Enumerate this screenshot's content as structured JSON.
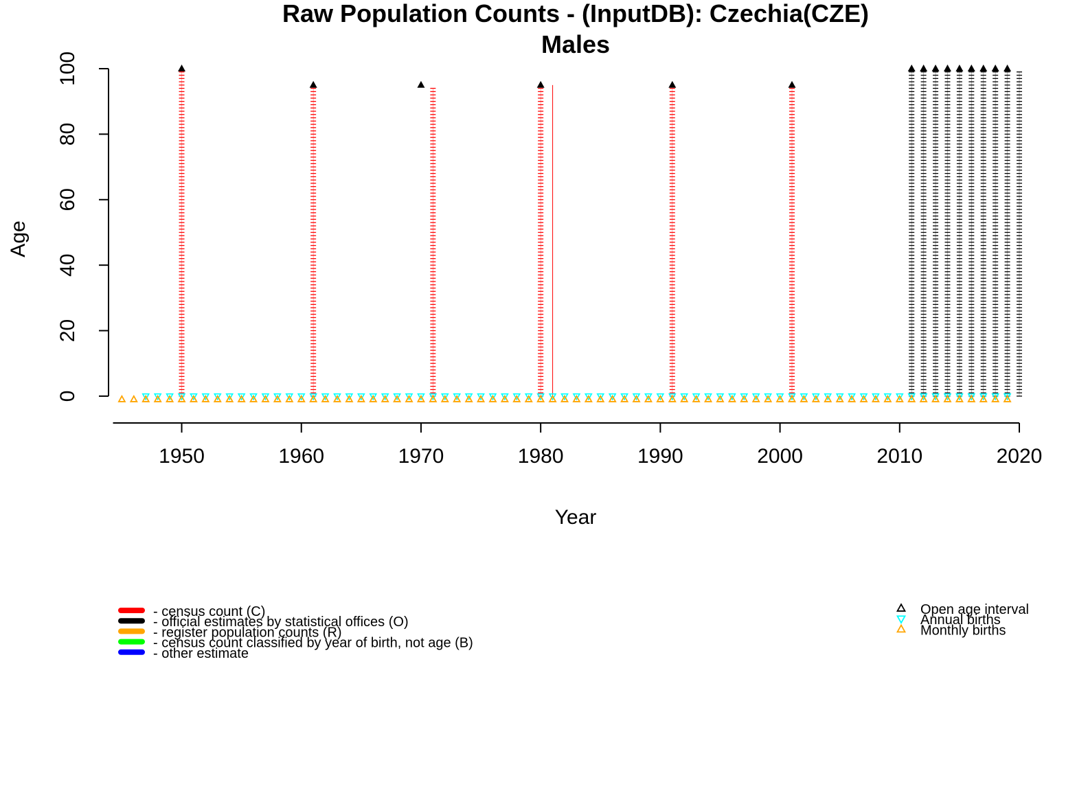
{
  "chart_data": {
    "type": "scatter",
    "title": "Raw Population Counts - (InputDB): Czechia(CZE)",
    "subtitle": "Males",
    "xlabel": "Year",
    "ylabel": "Age",
    "xlim": [
      1944,
      2020
    ],
    "ylim": [
      -4,
      100
    ],
    "xticks": [
      1950,
      1960,
      1970,
      1980,
      1990,
      2000,
      2010,
      2020
    ],
    "yticks": [
      0,
      20,
      40,
      60,
      80,
      100
    ],
    "grid": false,
    "colors": {
      "census": "#ff0000",
      "official": "#000000",
      "register": "#ffa500",
      "birth_cohort": "#00ff00",
      "other": "#0000ff",
      "annual_births": "#00ffff",
      "monthly_births": "#ffa500",
      "open_age": "#000000"
    },
    "series": [
      {
        "name": "census count (C)",
        "color": "#ff0000",
        "year_ranges": [
          {
            "year": 1950,
            "age_from": 0,
            "age_to": 99
          },
          {
            "year": 1961,
            "age_from": 0,
            "age_to": 94
          },
          {
            "year": 1971,
            "age_from": 0,
            "age_to": 94
          },
          {
            "year": 1980,
            "age_from": 0,
            "age_to": 94
          },
          {
            "year": 1991,
            "age_from": 0,
            "age_to": 94
          },
          {
            "year": 2001,
            "age_from": 0,
            "age_to": 94
          }
        ],
        "thin_lines": [
          {
            "year": 1981,
            "age_from": 0,
            "age_to": 95
          }
        ]
      },
      {
        "name": "official estimates by statistical offices (O)",
        "color": "#000000",
        "year_ranges": [
          {
            "year": 2011,
            "age_from": 0,
            "age_to": 99
          },
          {
            "year": 2012,
            "age_from": 0,
            "age_to": 99
          },
          {
            "year": 2013,
            "age_from": 0,
            "age_to": 99
          },
          {
            "year": 2014,
            "age_from": 0,
            "age_to": 99
          },
          {
            "year": 2015,
            "age_from": 0,
            "age_to": 99
          },
          {
            "year": 2016,
            "age_from": 0,
            "age_to": 99
          },
          {
            "year": 2017,
            "age_from": 0,
            "age_to": 99
          },
          {
            "year": 2018,
            "age_from": 0,
            "age_to": 99
          },
          {
            "year": 2019,
            "age_from": 0,
            "age_to": 99
          },
          {
            "year": 2020,
            "age_from": 0,
            "age_to": 99
          }
        ]
      },
      {
        "name": "Open age interval",
        "marker": "triangle-up-filled",
        "color": "#000000",
        "points": [
          {
            "x": 1950,
            "y": 100
          },
          {
            "x": 1961,
            "y": 95
          },
          {
            "x": 1970,
            "y": 95
          },
          {
            "x": 1980,
            "y": 95
          },
          {
            "x": 1991,
            "y": 95
          },
          {
            "x": 2001,
            "y": 95
          },
          {
            "x": 2011,
            "y": 100
          },
          {
            "x": 2012,
            "y": 100
          },
          {
            "x": 2013,
            "y": 100
          },
          {
            "x": 2014,
            "y": 100
          },
          {
            "x": 2015,
            "y": 100
          },
          {
            "x": 2016,
            "y": 100
          },
          {
            "x": 2017,
            "y": 100
          },
          {
            "x": 2018,
            "y": 100
          },
          {
            "x": 2019,
            "y": 100
          }
        ]
      },
      {
        "name": "Annual births",
        "marker": "triangle-down",
        "color": "#00ffff",
        "y": 0,
        "x_from": 1947,
        "x_to": 2019
      },
      {
        "name": "Monthly births",
        "marker": "triangle-up",
        "color": "#ffa500",
        "y": -1,
        "x_from": 1945,
        "x_to": 2019
      }
    ],
    "legend_left": {
      "placement": "bottom-left",
      "items": [
        {
          "label": "- census count (C)",
          "color": "#ff0000"
        },
        {
          "label": "- official estimates by statistical offices (O)",
          "color": "#000000"
        },
        {
          "label": "- register population counts (R)",
          "color": "#ffa500"
        },
        {
          "label": "- census count classified by year of birth, not age (B)",
          "color": "#00ff00"
        },
        {
          "label": "- other estimate",
          "color": "#0000ff"
        }
      ]
    },
    "legend_right": {
      "placement": "bottom-right",
      "items": [
        {
          "label": "Open age interval",
          "marker": "triangle-up",
          "color": "#000000"
        },
        {
          "label": "Annual births",
          "marker": "triangle-down",
          "color": "#00ffff"
        },
        {
          "label": "Monthly births",
          "marker": "triangle-up",
          "color": "#ffa500"
        }
      ]
    }
  }
}
